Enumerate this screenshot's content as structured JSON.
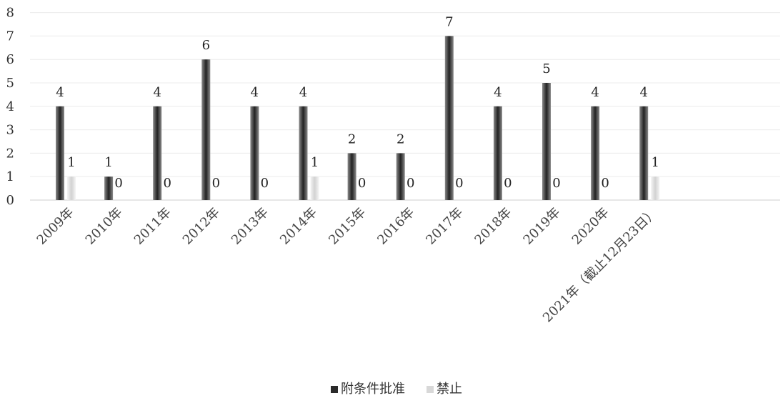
{
  "chart_data": {
    "type": "bar",
    "categories": [
      "2009年",
      "2010年",
      "2011年",
      "2012年",
      "2013年",
      "2014年",
      "2015年",
      "2016年",
      "2017年",
      "2018年",
      "2019年",
      "2020年",
      "2021年（截止12月23日）"
    ],
    "series": [
      {
        "name": "附条件批准",
        "values": [
          4,
          1,
          4,
          6,
          4,
          4,
          2,
          2,
          7,
          4,
          5,
          4,
          4
        ],
        "color": "#3a3a3a"
      },
      {
        "name": "禁止",
        "values": [
          1,
          0,
          0,
          0,
          0,
          1,
          0,
          0,
          0,
          0,
          0,
          0,
          1
        ],
        "color": "#dcdcdc"
      }
    ],
    "ylim": [
      0,
      8
    ],
    "yticks": [
      0,
      1,
      2,
      3,
      4,
      5,
      6,
      7,
      8
    ],
    "grid": true,
    "legend_position": "bottom"
  }
}
